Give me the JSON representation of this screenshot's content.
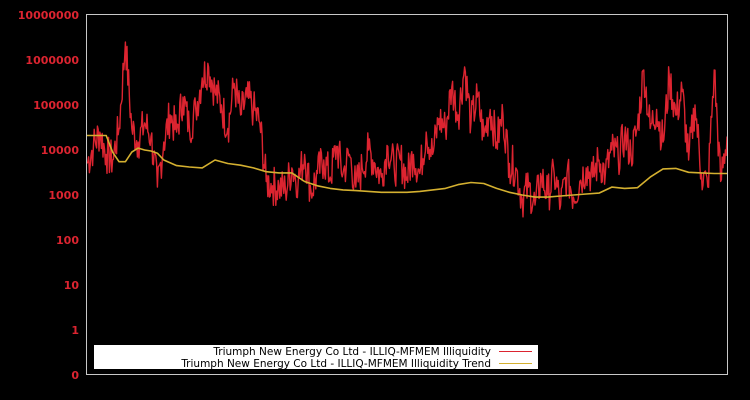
{
  "chart_data": {
    "type": "line",
    "title": "",
    "xlabel": "",
    "ylabel": "",
    "yscale": "log",
    "ylim": [
      0,
      10000000
    ],
    "y_ticks": [
      "10000000",
      "1000000",
      "100000",
      "10000",
      "1000",
      "100",
      "10",
      "1",
      "0"
    ],
    "x_ticks": [],
    "grid": false,
    "legend_position": "lower-left",
    "colors": {
      "background": "#000000",
      "axis_frame": "#c8c8c8",
      "tick_label": "#dc2430",
      "series_illiquidity": "#dc2430",
      "series_trend": "#d4b030",
      "legend_bg": "#ffffff",
      "legend_text": "#000000"
    },
    "series": [
      {
        "name": "Triumph New Energy Co Ltd - ILLIQ-MFMEM Illiquidity",
        "color": "#dc2430",
        "x_frac": [
          0.0,
          0.01,
          0.02,
          0.03,
          0.04,
          0.05,
          0.06,
          0.07,
          0.08,
          0.09,
          0.1,
          0.11,
          0.12,
          0.13,
          0.14,
          0.15,
          0.16,
          0.17,
          0.18,
          0.19,
          0.2,
          0.21,
          0.22,
          0.23,
          0.24,
          0.25,
          0.26,
          0.27,
          0.28,
          0.29,
          0.3,
          0.31,
          0.32,
          0.33,
          0.34,
          0.35,
          0.36,
          0.37,
          0.38,
          0.39,
          0.4,
          0.41,
          0.42,
          0.43,
          0.44,
          0.45,
          0.46,
          0.47,
          0.48,
          0.49,
          0.5,
          0.51,
          0.52,
          0.53,
          0.54,
          0.55,
          0.56,
          0.57,
          0.58,
          0.59,
          0.6,
          0.61,
          0.62,
          0.63,
          0.64,
          0.65,
          0.66,
          0.67,
          0.68,
          0.69,
          0.7,
          0.71,
          0.72,
          0.73,
          0.74,
          0.75,
          0.76,
          0.77,
          0.78,
          0.79,
          0.8,
          0.81,
          0.82,
          0.83,
          0.84,
          0.85,
          0.86,
          0.87,
          0.88,
          0.89,
          0.9,
          0.91,
          0.92,
          0.93,
          0.94,
          0.95,
          0.96,
          0.97,
          0.98,
          0.99,
          1.0
        ],
        "values": [
          5000,
          12000,
          25000,
          8000,
          6000,
          30000,
          2500000,
          30000,
          15000,
          40000,
          20000,
          1500,
          15000,
          60000,
          25000,
          150000,
          30000,
          80000,
          400000,
          700000,
          200000,
          100000,
          30000,
          300000,
          60000,
          150000,
          80000,
          40000,
          2000,
          1600,
          1500,
          1300,
          4000,
          2000,
          8000,
          1200,
          3000,
          6000,
          2500,
          12000,
          3000,
          8000,
          1500,
          4000,
          10000,
          5000,
          2500,
          12000,
          4000,
          6000,
          2500,
          8000,
          3000,
          25000,
          8000,
          50000,
          30000,
          250000,
          60000,
          700000,
          40000,
          150000,
          20000,
          80000,
          15000,
          60000,
          5000,
          4000,
          800,
          1500,
          600,
          2500,
          1000,
          3000,
          600,
          3000,
          900,
          2000,
          4000,
          2500,
          6000,
          3000,
          10000,
          7000,
          20000,
          8000,
          30000,
          600000,
          30000,
          80000,
          15000,
          400000,
          60000,
          200000,
          6000,
          100000,
          3000,
          1500,
          600000,
          2000,
          20000
        ]
      },
      {
        "name": "Triumph New Energy Co Ltd - ILLIQ-MFMEM Illiquidity Trend",
        "color": "#d4b030",
        "x_frac": [
          0.0,
          0.02,
          0.03,
          0.04,
          0.05,
          0.06,
          0.07,
          0.08,
          0.09,
          0.1,
          0.11,
          0.12,
          0.14,
          0.16,
          0.18,
          0.2,
          0.22,
          0.24,
          0.26,
          0.28,
          0.3,
          0.32,
          0.34,
          0.36,
          0.38,
          0.4,
          0.42,
          0.44,
          0.46,
          0.48,
          0.5,
          0.52,
          0.54,
          0.56,
          0.58,
          0.6,
          0.62,
          0.64,
          0.66,
          0.68,
          0.7,
          0.72,
          0.74,
          0.76,
          0.78,
          0.8,
          0.82,
          0.84,
          0.86,
          0.88,
          0.9,
          0.92,
          0.94,
          0.96,
          0.98,
          1.0
        ],
        "values": [
          21000,
          21000,
          21000,
          9000,
          5500,
          5500,
          9000,
          11000,
          10000,
          9500,
          8500,
          6000,
          4500,
          4200,
          4000,
          6000,
          5000,
          4600,
          4000,
          3300,
          3100,
          3100,
          2000,
          1600,
          1400,
          1300,
          1250,
          1200,
          1150,
          1150,
          1150,
          1200,
          1300,
          1400,
          1700,
          1900,
          1800,
          1400,
          1150,
          1000,
          900,
          900,
          950,
          1000,
          1050,
          1100,
          1500,
          1400,
          1450,
          2500,
          3800,
          3900,
          3200,
          3100,
          3000,
          3000
        ]
      }
    ]
  },
  "legend": {
    "items": [
      {
        "label": "Triumph New Energy Co Ltd - ILLIQ-MFMEM Illiquidity",
        "color": "#dc2430"
      },
      {
        "label": "Triumph New Energy Co Ltd - ILLIQ-MFMEM Illiquidity Trend",
        "color": "#d4b030"
      }
    ]
  }
}
